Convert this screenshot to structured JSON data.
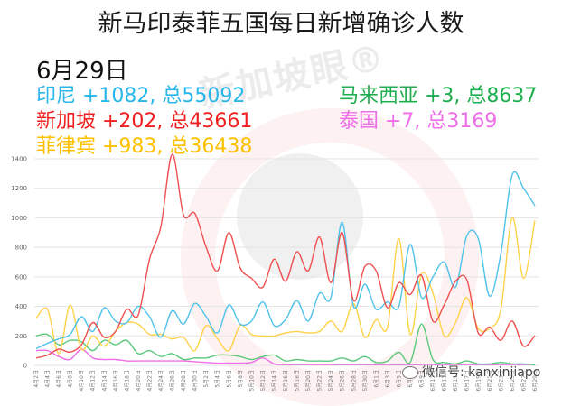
{
  "header": {
    "title": "新马印泰菲五国每日新增确诊人数",
    "date": "6月29日"
  },
  "stats": [
    {
      "country": "印尼",
      "text": "印尼 +1082, 总55092",
      "new": 1082,
      "total": 55092,
      "color": "#29b6e8"
    },
    {
      "country": "马来西亚",
      "text": "马来西亚 +3, 总8637",
      "new": 3,
      "total": 8637,
      "color": "#1fae4f"
    },
    {
      "country": "新加坡",
      "text": "新加坡 +202, 总43661",
      "new": 202,
      "total": 43661,
      "color": "#f01f1f"
    },
    {
      "country": "泰国",
      "text": "泰国 +7, 总3169",
      "new": 7,
      "total": 3169,
      "color": "#ee6ee8"
    },
    {
      "country": "菲律宾",
      "text": "菲律宾 +983, 总36438",
      "new": 983,
      "total": 36438,
      "color": "#ffc000"
    }
  ],
  "watermark": {
    "brand": "新加坡眼®",
    "wechat": "微信号: kanxinjiapo"
  },
  "chart_data": {
    "type": "line",
    "title": "新马印泰菲五国每日新增确诊人数",
    "xlabel": "",
    "ylabel": "",
    "ylim": [
      0,
      1400
    ],
    "yticks": [
      0,
      200,
      400,
      600,
      800,
      1000,
      1200,
      1400
    ],
    "grid": true,
    "legend_position": "top-left (text annotations)",
    "categories": [
      "4月2日",
      "4月4日",
      "4月6日",
      "4月8日",
      "4月10日",
      "4月12日",
      "4月14日",
      "4月16日",
      "4月18日",
      "4月20日",
      "4月22日",
      "4月24日",
      "4月26日",
      "4月28日",
      "4月30日",
      "5月2日",
      "5月4日",
      "5月6日",
      "5月8日",
      "5月10日",
      "5月12日",
      "5月14日",
      "5月16日",
      "5月18日",
      "5月20日",
      "5月22日",
      "5月24日",
      "5月26日",
      "5月28日",
      "5月30日",
      "6月1日",
      "6月3日",
      "6月5日",
      "6月7日",
      "6月9日",
      "6月11日",
      "6月13日",
      "6月15日",
      "6月17日",
      "6月19日",
      "6月21日",
      "6月23日",
      "6月25日",
      "6月27日",
      "6月29日"
    ],
    "series": [
      {
        "name": "印尼",
        "color": "#4fc3ea",
        "values": [
          113,
          150,
          180,
          210,
          330,
          230,
          390,
          300,
          290,
          400,
          330,
          190,
          370,
          280,
          420,
          330,
          220,
          410,
          280,
          300,
          430,
          270,
          310,
          440,
          300,
          490,
          460,
          970,
          400,
          550,
          380,
          430,
          400,
          820,
          460,
          600,
          700,
          530,
          880,
          860,
          470,
          760,
          1290,
          1200,
          1082
        ]
      },
      {
        "name": "新加坡",
        "color": "#f05050",
        "values": [
          50,
          70,
          110,
          90,
          140,
          290,
          190,
          230,
          380,
          340,
          720,
          940,
          1430,
          1020,
          1030,
          800,
          640,
          900,
          660,
          590,
          530,
          720,
          570,
          770,
          640,
          870,
          560,
          900,
          440,
          670,
          640,
          390,
          560,
          480,
          610,
          300,
          410,
          570,
          580,
          220,
          260,
          170,
          300,
          130,
          202
        ]
      },
      {
        "name": "菲律宾",
        "color": "#ffd24a",
        "values": [
          320,
          380,
          80,
          410,
          110,
          200,
          130,
          230,
          290,
          280,
          210,
          210,
          180,
          190,
          100,
          270,
          180,
          100,
          270,
          210,
          200,
          200,
          220,
          230,
          220,
          230,
          300,
          230,
          420,
          190,
          310,
          260,
          860,
          210,
          620,
          490,
          200,
          290,
          460,
          250,
          250,
          380,
          1000,
          590,
          983
        ]
      },
      {
        "name": "马来西亚",
        "color": "#5bc97c",
        "values": [
          200,
          210,
          140,
          170,
          160,
          100,
          170,
          140,
          170,
          80,
          100,
          60,
          80,
          40,
          50,
          50,
          70,
          70,
          60,
          40,
          60,
          70,
          30,
          40,
          30,
          30,
          30,
          50,
          30,
          60,
          20,
          30,
          90,
          20,
          280,
          40,
          20,
          10,
          30,
          10,
          10,
          20,
          10,
          10,
          3
        ]
      },
      {
        "name": "泰国",
        "color": "#ee6ee8",
        "values": [
          100,
          100,
          60,
          40,
          110,
          50,
          40,
          40,
          30,
          30,
          30,
          30,
          30,
          30,
          25,
          20,
          15,
          15,
          15,
          20,
          50,
          10,
          5,
          5,
          5,
          5,
          5,
          5,
          5,
          5,
          5,
          5,
          5,
          5,
          5,
          5,
          5,
          5,
          5,
          5,
          5,
          5,
          5,
          5,
          7
        ]
      }
    ]
  }
}
